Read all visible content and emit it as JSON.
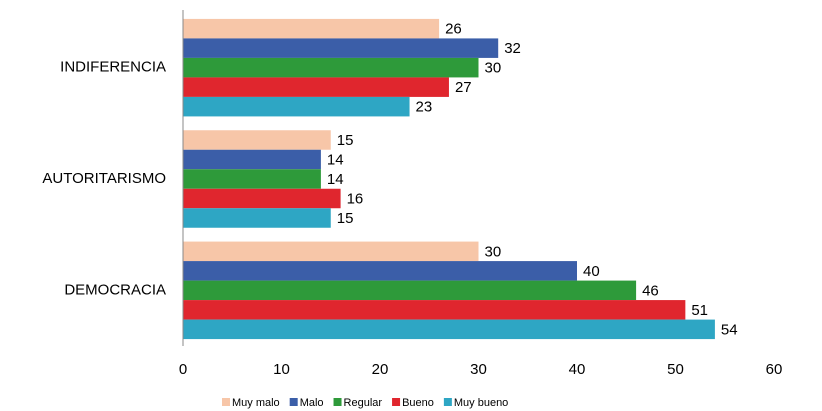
{
  "chart_data": {
    "type": "hbar",
    "categories": [
      "INDIFERENCIA",
      "AUTORITARISMO",
      "DEMOCRACIA"
    ],
    "series": [
      {
        "name": "Muy malo",
        "color": "#f7c6a8",
        "values": [
          26,
          15,
          30
        ]
      },
      {
        "name": "Malo",
        "color": "#3b5ea8",
        "values": [
          32,
          14,
          40
        ]
      },
      {
        "name": "Regular",
        "color": "#2e9a3a",
        "values": [
          30,
          14,
          46
        ]
      },
      {
        "name": "Bueno",
        "color": "#e0262e",
        "values": [
          27,
          16,
          51
        ]
      },
      {
        "name": "Muy bueno",
        "color": "#2ea6c4",
        "values": [
          23,
          15,
          54
        ]
      }
    ],
    "xlim": [
      0,
      60
    ],
    "xticks": [
      0,
      10,
      20,
      30,
      40,
      50,
      60
    ],
    "legend": "bottom",
    "grid": false
  }
}
